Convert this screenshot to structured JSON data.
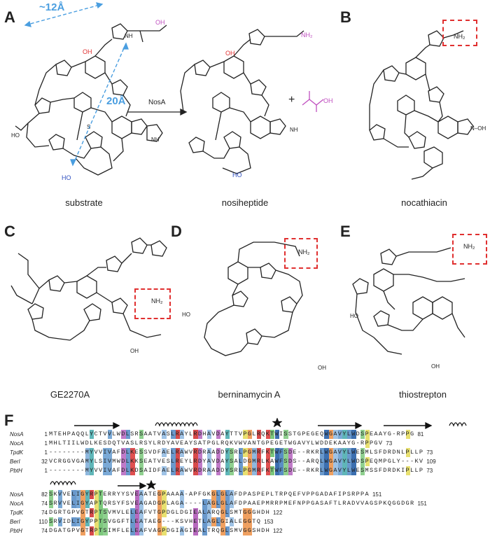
{
  "panels": {
    "A": {
      "label": "A",
      "distance_short": "~12Å",
      "distance_long": "20Å",
      "enzyme": "NosA",
      "plus": "+",
      "caption_substrate": "substrate",
      "caption_product": "nosiheptide"
    },
    "B": {
      "label": "B",
      "caption": "nocathiacin"
    },
    "C": {
      "label": "C",
      "caption": "GE2270A"
    },
    "D": {
      "label": "D",
      "caption": "berninamycin A"
    },
    "E": {
      "label": "E",
      "caption": "thiostrepton"
    },
    "F": {
      "label": "F"
    }
  },
  "atoms": {
    "nh2": "NH₂",
    "oh": "OH",
    "ho": "HO",
    "nh": "NH",
    "n": "N",
    "o": "O",
    "s": "S",
    "h": "H",
    "n_oh": "N–OH"
  },
  "colors": {
    "blue_arrow": "#4a9ee0",
    "magenta": "#c050c0",
    "red_box": "#e03030",
    "oh_red": "#e03030",
    "ho_blue": "#3050c0"
  },
  "alignment": {
    "block1": [
      {
        "name": "NosA",
        "start": "1",
        "seq": "MTEHPAQQLYCTVVLWDLSRSAATVASLRAYLRDHAVDAYTTVPGLRQKTWISSTGPEGEQWGAVYLWDSPEAAYG-RPPG",
        "end": "81"
      },
      {
        "name": "NocA",
        "start": "1",
        "seq": "MHLTIILWDLKESDQTVASLRSYLRDYAVEAYSATPGLRQKVWVANTGPEGETWGAVYLWDDEKAAYG-RPPGV",
        "end": "73"
      },
      {
        "name": "TpdK",
        "start": "1",
        "seq": "--------MYVVIVAFDLKESSVDFAELRAWVRDRAADDYSRLPGMRFKTWFSDE--RKRLWGAVYLWESMLSFDRDNLPLLP",
        "end": "73"
      },
      {
        "name": "BerI",
        "start": "32",
        "seq": "VCRGGVGAMYLSIVMWDLKKSEATVESLREYLRDYAVDAYSALDGMRLKAWFSDS--ARQLWGAVYLWDSPEQMPGLY---KV",
        "end": "109"
      },
      {
        "name": "PbtH",
        "start": "1",
        "seq": "--------MYVVIVAFDLKDSAIDFAELRAWVRDRAADDYSRLPGMRFKTWFSDE--RKRLWGAVYLWESMSSFDRDKIPLLP",
        "end": "73"
      }
    ],
    "block2": [
      {
        "name": "NosA",
        "start": "82",
        "seq": "SKVVELIGYRPTERRYYSVEAATEGPAAAA-APFGKGLGLAFDPASPEPLTRPQEFVPPGADAFIPSRPPA",
        "end": "151"
      },
      {
        "name": "NocA",
        "start": "74",
        "seq": "SRVVELIGYAPTQRSYFSVEAGADGPLAGA----LAGLGLAFDPAAEPMRRPMEFNPPGASAFTLRADVVAGSPKQGGDGR",
        "end": "151"
      },
      {
        "name": "TpdK",
        "start": "74",
        "seq": "DGRTGPVGTRPTSVMVLELEAFVTGPDGLDGIEALARQGLSMTGGGHDH",
        "end": "122"
      },
      {
        "name": "BerI",
        "start": "110",
        "seq": "SRVIDLIGYPPTSVGGFTLEATAEG---KSVHETLAGLGIALEGGTQ",
        "end": "153"
      },
      {
        "name": "PbtH",
        "start": "74",
        "seq": "DGATGPVGTRPTSIMFLELEAFVAGPDGIAGIEALTRQGLSMVGGSHDH",
        "end": "122"
      }
    ]
  }
}
